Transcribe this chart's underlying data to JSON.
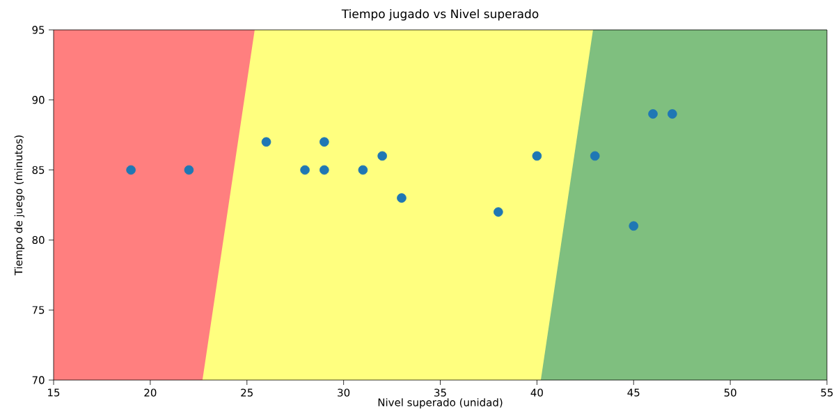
{
  "chart_data": {
    "type": "scatter",
    "title": "Tiempo jugado vs Nivel superado",
    "xlabel": "Nivel superado (unidad)",
    "ylabel": "Tiempo de juego (minutos)",
    "xlim": [
      15,
      55
    ],
    "ylim": [
      70,
      95
    ],
    "xticks": [
      15,
      20,
      25,
      30,
      35,
      40,
      45,
      50,
      55
    ],
    "yticks": [
      70,
      75,
      80,
      85,
      90,
      95
    ],
    "marker": "circle",
    "grid": false,
    "series": [
      {
        "type": "area",
        "marker": "none",
        "color": "#ff7f7f",
        "x": [
          15,
          55
        ],
        "values": [
          95,
          95
        ]
      },
      {
        "type": "area",
        "marker": "none",
        "color": "#ffff7f",
        "x": [
          22.7,
          25.4,
          55
        ],
        "values": [
          70,
          95,
          95
        ]
      },
      {
        "type": "area",
        "marker": "none",
        "color": "#7fbf7f",
        "x": [
          40.2,
          42.9,
          55
        ],
        "values": [
          70,
          95,
          95
        ]
      },
      {
        "color": "#1f77b4",
        "x": [
          19,
          22,
          26,
          28,
          29,
          29,
          31,
          32,
          33,
          38,
          40,
          43,
          45,
          46,
          47
        ],
        "values": [
          85,
          85,
          87,
          85,
          87,
          85,
          85,
          86,
          83,
          82,
          86,
          86,
          81,
          89,
          89
        ]
      }
    ]
  }
}
